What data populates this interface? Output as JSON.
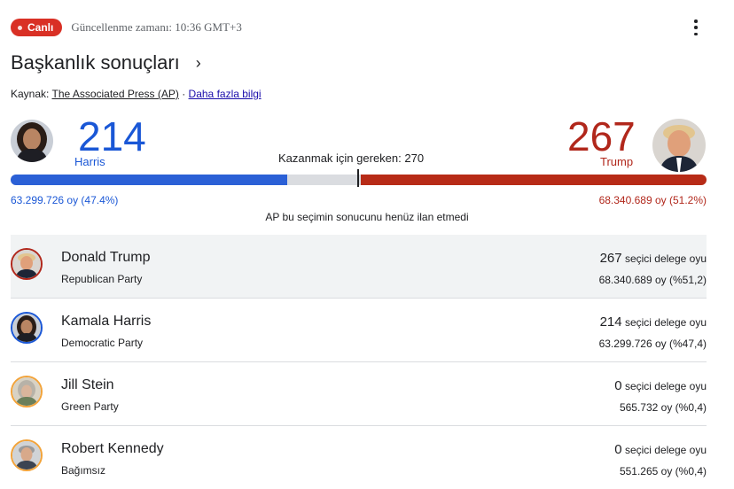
{
  "header": {
    "live_label": "Canlı",
    "updated_text": "Güncellenme zamanı: 10:36 GMT+3",
    "title": "Başkanlık sonuçları",
    "chevron": "›",
    "source_prefix": "Kaynak: ",
    "source_name": "The Associated Press (AP)",
    "source_sep": " · ",
    "more_info": "Daha fazla bilgi"
  },
  "summary": {
    "harris_votes_ev": "214",
    "harris_name": "Harris",
    "trump_votes_ev": "267",
    "trump_name": "Trump",
    "needed_text": "Kazanmak için gereken: 270",
    "harris_popular": "63.299.726 oy (47.4%)",
    "trump_popular": "68.340.689 oy (51.2%)",
    "ap_note": "AP bu seçimin sonucunu henüz ilan etmedi",
    "total_electoral": 538,
    "harris_ev_value": 214,
    "trump_ev_value": 267
  },
  "colors": {
    "harris_blue": "#1a57d6",
    "trump_red": "#b1271b",
    "live_red": "#d93025"
  },
  "candidates": [
    {
      "name": "Donald Trump",
      "party": "Republican Party",
      "ev": "267",
      "ev_label": "seçici delege oyu",
      "votes": "68.340.689 oy (%51,2)",
      "ring": "#b1271b",
      "icon": "trump-avatar-icon"
    },
    {
      "name": "Kamala Harris",
      "party": "Democratic Party",
      "ev": "214",
      "ev_label": "seçici delege oyu",
      "votes": "63.299.726 oy (%47,4)",
      "ring": "#1a57d6",
      "icon": "harris-avatar-icon"
    },
    {
      "name": "Jill Stein",
      "party": "Green Party",
      "ev": "0",
      "ev_label": "seçici delege oyu",
      "votes": "565.732 oy (%0,4)",
      "ring": "#f2a33a",
      "icon": "stein-avatar-icon"
    },
    {
      "name": "Robert Kennedy",
      "party": "Bağımsız",
      "ev": "0",
      "ev_label": "seçici delege oyu",
      "votes": "551.265 oy (%0,4)",
      "ring": "#f2a33a",
      "icon": "kennedy-avatar-icon"
    }
  ]
}
